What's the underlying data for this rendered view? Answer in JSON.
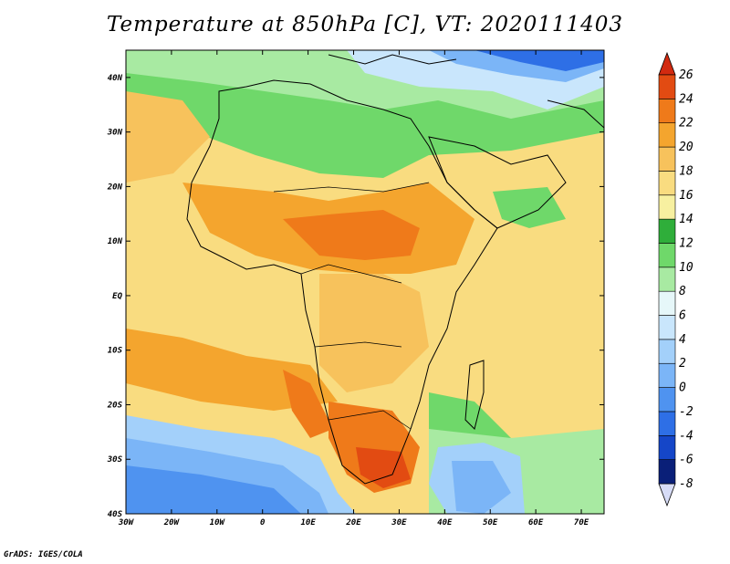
{
  "title": "Temperature at 850hPa [C], VT: 2020111403",
  "credit": "GrADS: IGES/COLA",
  "map": {
    "lon_range": [
      -30,
      75
    ],
    "lat_range": [
      -40,
      45
    ],
    "lon_ticks": [
      {
        "value": -30,
        "label": "30W"
      },
      {
        "value": -20,
        "label": "20W"
      },
      {
        "value": -10,
        "label": "10W"
      },
      {
        "value": 0,
        "label": "0"
      },
      {
        "value": 10,
        "label": "10E"
      },
      {
        "value": 20,
        "label": "20E"
      },
      {
        "value": 30,
        "label": "30E"
      },
      {
        "value": 40,
        "label": "40E"
      },
      {
        "value": 50,
        "label": "50E"
      },
      {
        "value": 60,
        "label": "60E"
      },
      {
        "value": 70,
        "label": "70E"
      }
    ],
    "lat_ticks": [
      {
        "value": 40,
        "label": "40N"
      },
      {
        "value": 30,
        "label": "30N"
      },
      {
        "value": 20,
        "label": "20N"
      },
      {
        "value": 10,
        "label": "10N"
      },
      {
        "value": 0,
        "label": "EQ"
      },
      {
        "value": -10,
        "label": "10S"
      },
      {
        "value": -20,
        "label": "20S"
      },
      {
        "value": -30,
        "label": "30S"
      },
      {
        "value": -40,
        "label": "40S"
      }
    ]
  },
  "colorbar": {
    "levels": [
      -8,
      -6,
      -4,
      -2,
      0,
      2,
      4,
      6,
      8,
      10,
      12,
      14,
      16,
      18,
      20,
      22,
      24,
      26
    ],
    "colors": [
      "#0a1f78",
      "#1546c8",
      "#2e6fe6",
      "#4f93f0",
      "#7bb5f7",
      "#a3d0fa",
      "#c9e6fc",
      "#e6f7f9",
      "#a8eaa2",
      "#6fd86a",
      "#2fae3a",
      "#f7f0a0",
      "#f9dc80",
      "#f7c25c",
      "#f4a52e",
      "#ef7a1a",
      "#e24b12"
    ],
    "under_color": "#d7dcf7",
    "over_color": "#d22a10"
  }
}
